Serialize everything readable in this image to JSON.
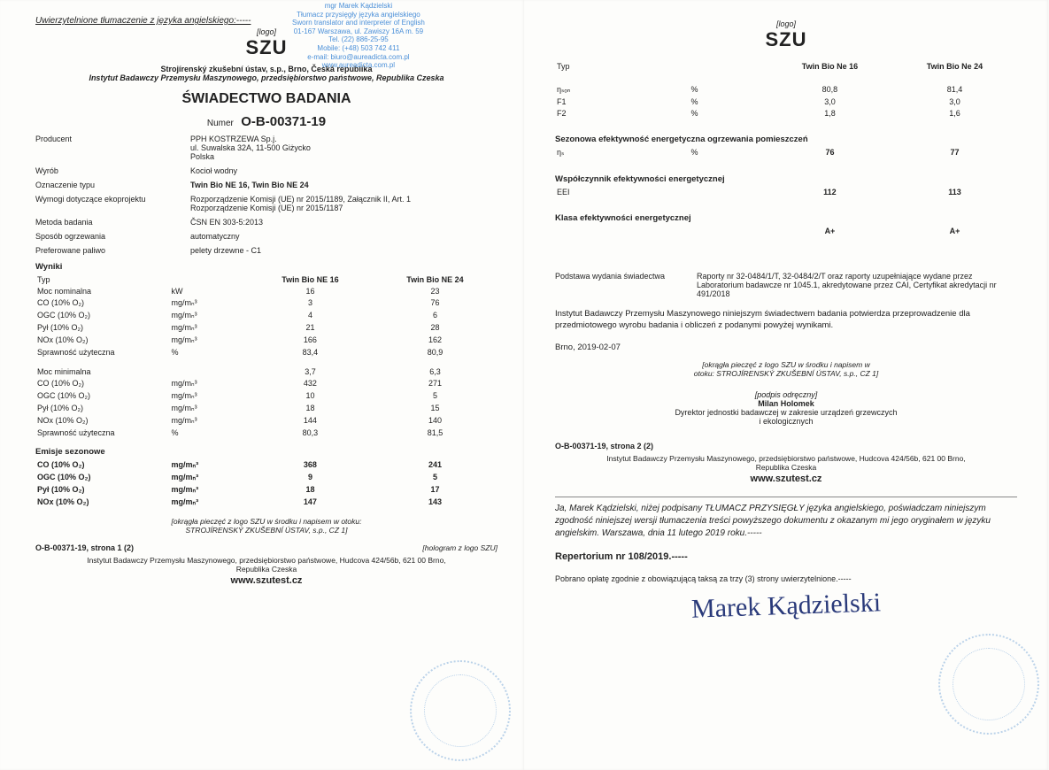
{
  "translator": {
    "name": "mgr Marek Kądzielski",
    "title": "Tłumacz przysięgły języka angielskiego",
    "title_en": "Sworn translator and interpreter of English",
    "addr": "01-167 Warszawa, ul. Zawiszy 16A m. 59",
    "tel": "Tel. (22) 886-25-95",
    "mobile": "Mobile: (+48) 503 742 411",
    "email": "e-mail: biuro@aureadicta.com.pl",
    "web": "www.aureadicta.com.pl"
  },
  "header_line": "Uwierzytelnione tłumaczenie z języka angielskiego:-----",
  "logo": {
    "label": "[logo]",
    "text": "SZU"
  },
  "institute": {
    "line1": "Strojírenský zkušební ústav, s.p., Brno, Česká republika",
    "line2": "Instytut Badawczy Przemysłu Maszynowego, przedsiębiorstwo państwowe, Republika Czeska"
  },
  "cert_title": "ŚWIADECTWO BADANIA",
  "cert_num_label": "Numer",
  "cert_num": "O-B-00371-19",
  "fields": {
    "producent_k": "Producent",
    "producent_v": "PPH KOSTRZEWA Sp.j.\nul. Suwalska 32A, 11-500 Giżycko\nPolska",
    "wyrob_k": "Wyrób",
    "wyrob_v": "Kocioł wodny",
    "ozn_k": "Oznaczenie typu",
    "ozn_v": "Twin Bio NE 16, Twin Bio NE 24",
    "wymogi_k": "Wymogi dotyczące ekoprojektu",
    "wymogi_v": "Rozporządzenie Komisji (UE) nr 2015/1189, Załącznik II, Art. 1\nRozporządzenie Komisji (UE) nr 2015/1187",
    "metoda_k": "Metoda badania",
    "metoda_v": "ČSN EN 303-5:2013",
    "sposob_k": "Sposób ogrzewania",
    "sposob_v": "automatyczny",
    "paliwo_k": "Preferowane paliwo",
    "paliwo_v": "pelety drzewne - C1"
  },
  "results_title": "Wyniki",
  "cols": {
    "typ": "Typ",
    "unit": "",
    "m1": "Twin Bio NE 16",
    "m2": "Twin Bio NE 24"
  },
  "rows_nominal": [
    {
      "p": "Moc nominalna",
      "u": "kW",
      "v1": "16",
      "v2": "23"
    },
    {
      "p": "CO (10% O₂)",
      "u": "mg/mₙ³",
      "v1": "3",
      "v2": "76"
    },
    {
      "p": "OGC (10% O₂)",
      "u": "mg/mₙ³",
      "v1": "4",
      "v2": "6"
    },
    {
      "p": "Pył (10% O₂)",
      "u": "mg/mₙ³",
      "v1": "21",
      "v2": "28"
    },
    {
      "p": "NOx (10% O₂)",
      "u": "mg/mₙ³",
      "v1": "166",
      "v2": "162"
    },
    {
      "p": "Sprawność użyteczna",
      "u": "%",
      "v1": "83,4",
      "v2": "80,9"
    }
  ],
  "rows_min": [
    {
      "p": "Moc minimalna",
      "u": "",
      "v1": "3,7",
      "v2": "6,3"
    },
    {
      "p": "CO (10% O₂)",
      "u": "mg/mₙ³",
      "v1": "432",
      "v2": "271"
    },
    {
      "p": "OGC (10% O₂)",
      "u": "mg/mₙ³",
      "v1": "10",
      "v2": "5"
    },
    {
      "p": "Pył (10% O₂)",
      "u": "mg/mₙ³",
      "v1": "18",
      "v2": "15"
    },
    {
      "p": "NOx (10% O₂)",
      "u": "mg/mₙ³",
      "v1": "144",
      "v2": "140"
    },
    {
      "p": "Sprawność użyteczna",
      "u": "%",
      "v1": "80,3",
      "v2": "81,5"
    }
  ],
  "emisje_title": "Emisje sezonowe",
  "rows_season": [
    {
      "p": "CO (10% O₂)",
      "u": "mg/mₙ³",
      "v1": "368",
      "v2": "241"
    },
    {
      "p": "OGC (10% O₂)",
      "u": "mg/mₙ³",
      "v1": "9",
      "v2": "5"
    },
    {
      "p": "Pył (10% O₂)",
      "u": "mg/mₙ³",
      "v1": "18",
      "v2": "17"
    },
    {
      "p": "NOx (10% O₂)",
      "u": "mg/mₙ³",
      "v1": "147",
      "v2": "143"
    }
  ],
  "seal_note": "[okrągła pieczęć z logo SZU w środku i napisem w otoku:\nSTROJÍRENSKÝ ZKUŠEBNÍ ÚSTAV, s.p., CZ 1]",
  "footer1": {
    "pf": "O-B-00371-19, strona 1 (2)",
    "holo": "[hologram z logo SZU]",
    "inst": "Instytut Badawczy Przemysłu Maszynowego, przedsiębiorstwo państwowe, Hudcova 424/56b, 621 00 Brno,\nRepublika Czeska",
    "web": "www.szutest.cz"
  },
  "page2": {
    "cols": {
      "typ": "Typ",
      "m1": "Twin Bio Ne 16",
      "m2": "Twin Bio Ne 24"
    },
    "rows_top": [
      {
        "p": "ηₛₒₙ",
        "u": "%",
        "v1": "80,8",
        "v2": "81,4"
      },
      {
        "p": "F1",
        "u": "%",
        "v1": "3,0",
        "v2": "3,0"
      },
      {
        "p": "F2",
        "u": "%",
        "v1": "1,8",
        "v2": "1,6"
      }
    ],
    "sec_sezon": "Sezonowa efektywność energetyczna ogrzewania pomieszczeń",
    "row_ns": {
      "p": "ηₛ",
      "u": "%",
      "v1": "76",
      "v2": "77"
    },
    "sec_wsp": "Współczynnik efektywności energetycznej",
    "row_eei": {
      "p": "EEI",
      "u": "",
      "v1": "112",
      "v2": "113"
    },
    "sec_klasa": "Klasa efektywności energetycznej",
    "row_klasa": {
      "p": "",
      "u": "",
      "v1": "A+",
      "v2": "A+"
    },
    "podstawa_k": "Podstawa wydania świadectwa",
    "podstawa_v": "Raporty nr 32-0484/1/T, 32-0484/2/T oraz raporty uzupełniające wydane przez Laboratorium badawcze nr 1045.1, akredytowane przez CAI, Certyfikat akredytacji nr 491/2018",
    "body1": "Instytut Badawczy Przemysłu Maszynowego niniejszym świadectwem badania potwierdza przeprowadzenie dla przedmiotowego wyrobu badania i obliczeń z podanymi powyżej wynikami.",
    "date": "Brno, 2019-02-07",
    "seal_note": "[okrągła pieczęć z logo SZU w środku i napisem w\notoku: STROJÍRENSKÝ ZKUŠEBNÍ ÚSTAV, s.p., CZ 1]",
    "sig_label": "[podpis odręczny]",
    "sig_name": "Milan Holomek",
    "sig_title": "Dyrektor jednostki badawczej w zakresie urządzeń grzewczych\ni ekologicznych",
    "pf": "O-B-00371-19, strona 2 (2)",
    "inst": "Instytut Badawczy Przemysłu Maszynowego, przedsiębiorstwo państwowe, Hudcova 424/56b, 621 00 Brno,\nRepublika Czeska",
    "web": "www.szutest.cz",
    "sworn": "Ja, Marek Kądzielski, niżej podpisany TŁUMACZ PRZYSIĘGŁY języka angielskiego, poświadczam niniejszym zgodność niniejszej wersji tłumaczenia treści powyższego dokumentu z okazanym mi jego oryginałem w języku angielskim. Warszawa, dnia 11 lutego 2019 roku.-----",
    "repertorium": "Repertorium nr 108/2019.-----",
    "fee": "Pobrano opłatę zgodnie z obowiązującą taksą za trzy (3) strony uwierzytelnione.-----",
    "handwritten": "Marek Kądzielski"
  }
}
